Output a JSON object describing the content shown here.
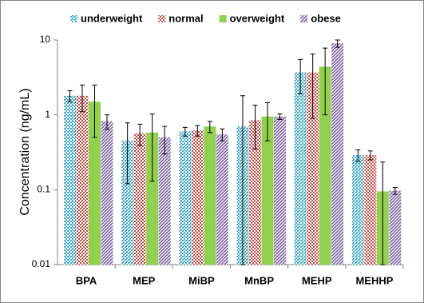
{
  "chart_data": {
    "type": "bar",
    "y_label": "Concentration (ng/mL)",
    "categories": [
      "BPA",
      "MEP",
      "MiBP",
      "MnBP",
      "MEHP",
      "MEHHP"
    ],
    "series": [
      {
        "name": "underweight",
        "color": "#4bacc6",
        "pattern": "dots",
        "values": [
          1.8,
          0.45,
          0.6,
          0.7,
          3.7,
          0.29
        ],
        "errors": [
          0.3,
          0.33,
          0.08,
          1.1,
          1.8,
          0.05
        ]
      },
      {
        "name": "normal",
        "color": "#c0504d",
        "pattern": "checker",
        "values": [
          1.8,
          0.57,
          0.62,
          0.85,
          3.7,
          0.29
        ],
        "errors": [
          0.7,
          0.18,
          0.1,
          0.5,
          2.8,
          0.04
        ]
      },
      {
        "name": "overweight",
        "color": "#92d050",
        "pattern": "solid",
        "values": [
          1.5,
          0.58,
          0.7,
          0.95,
          4.4,
          0.095
        ],
        "errors": [
          1.0,
          0.45,
          0.12,
          0.5,
          3.4,
          0.14
        ]
      },
      {
        "name": "obese",
        "color": "#8064a2",
        "pattern": "diagonal",
        "values": [
          0.82,
          0.5,
          0.55,
          0.95,
          9,
          0.097
        ],
        "errors": [
          0.18,
          0.2,
          0.1,
          0.08,
          1,
          0.01
        ]
      }
    ],
    "log_scale": true,
    "ylim": [
      0.01,
      10
    ],
    "yticks": [
      0.01,
      0.1,
      1,
      10
    ],
    "legend": "top",
    "grid": false
  }
}
